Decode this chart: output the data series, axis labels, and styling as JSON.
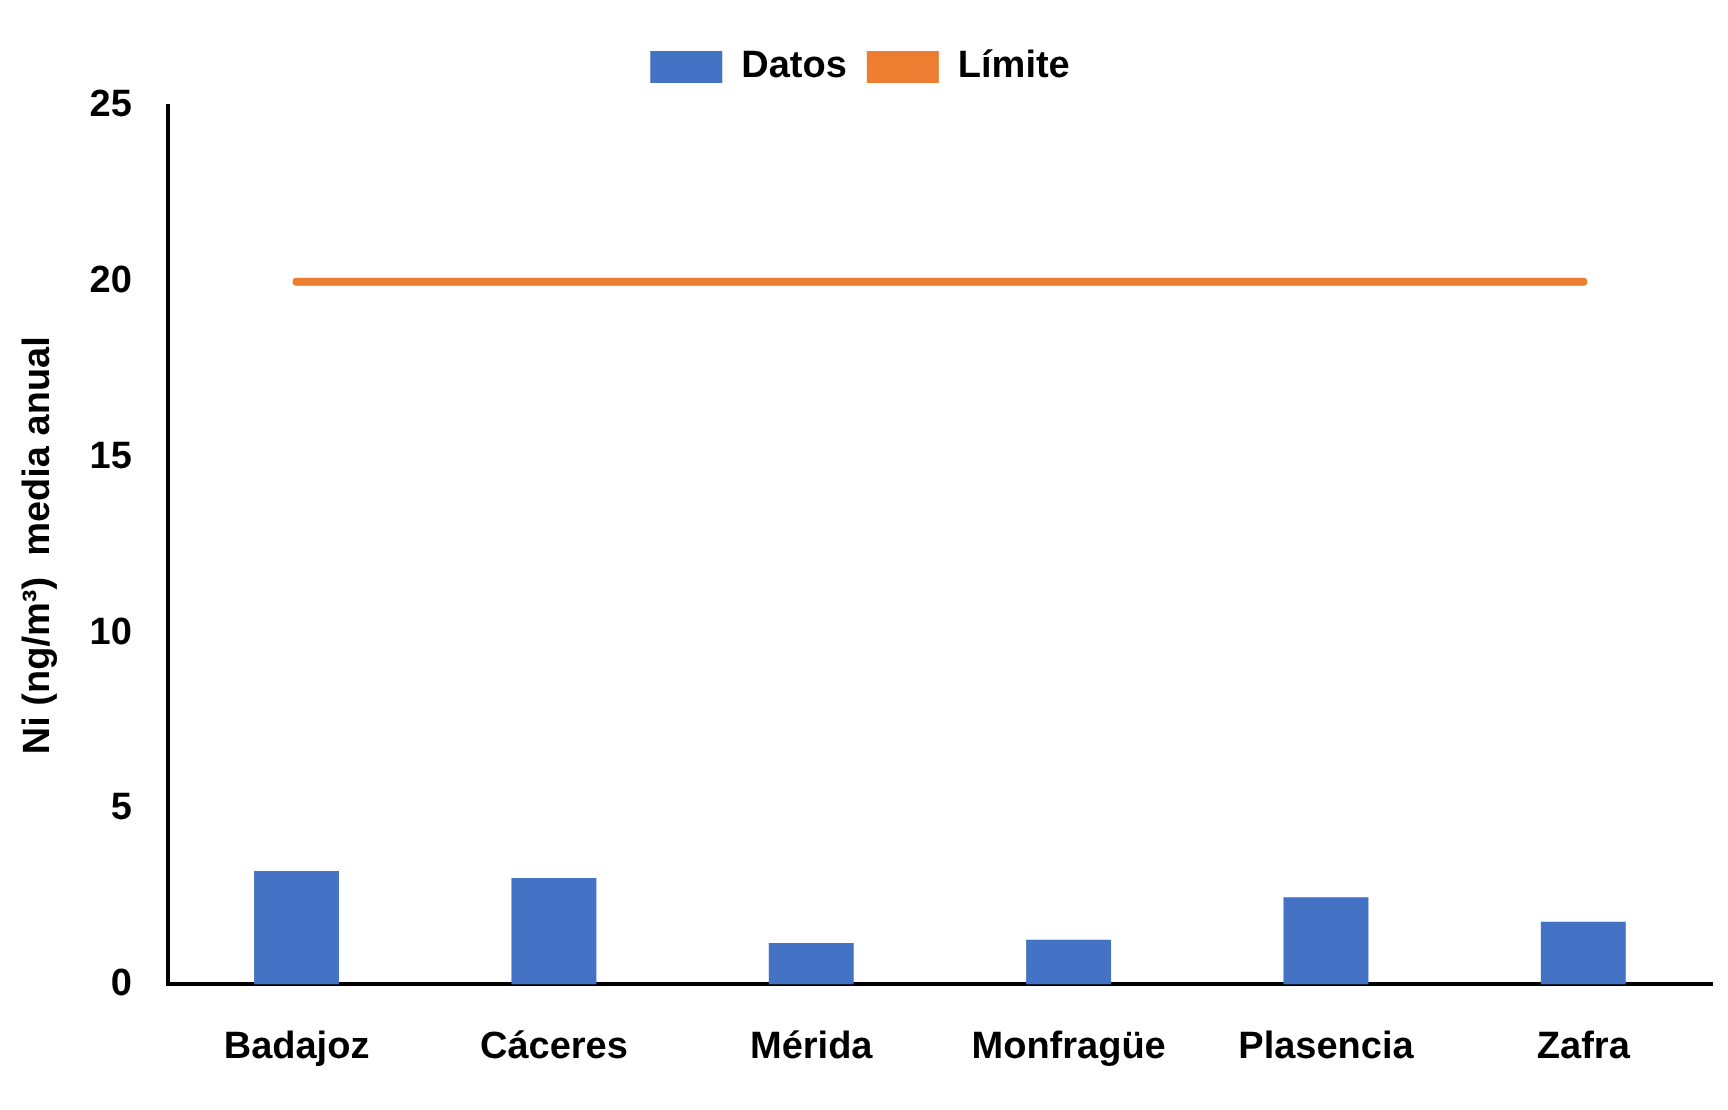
{
  "chart_data": {
    "type": "bar",
    "ylabel": "Ni (ng/m³)  media anual",
    "categories": [
      "Badajoz",
      "Cáceres",
      "Mérida",
      "Monfragüe",
      "Plasencia",
      "Zafra"
    ],
    "series": [
      {
        "name": "Datos",
        "color": "#4472c4",
        "values": [
          3.23,
          3.03,
          1.18,
          1.27,
          2.48,
          1.78
        ]
      },
      {
        "name": "Límite",
        "type": "line",
        "color": "#ed7d31",
        "values": [
          20,
          20,
          20,
          20,
          20,
          20
        ]
      }
    ],
    "ylim": [
      0,
      25
    ],
    "yticks": [
      0,
      5,
      10,
      15,
      20,
      25
    ],
    "grid": false,
    "legend": "top",
    "marker": "none"
  }
}
